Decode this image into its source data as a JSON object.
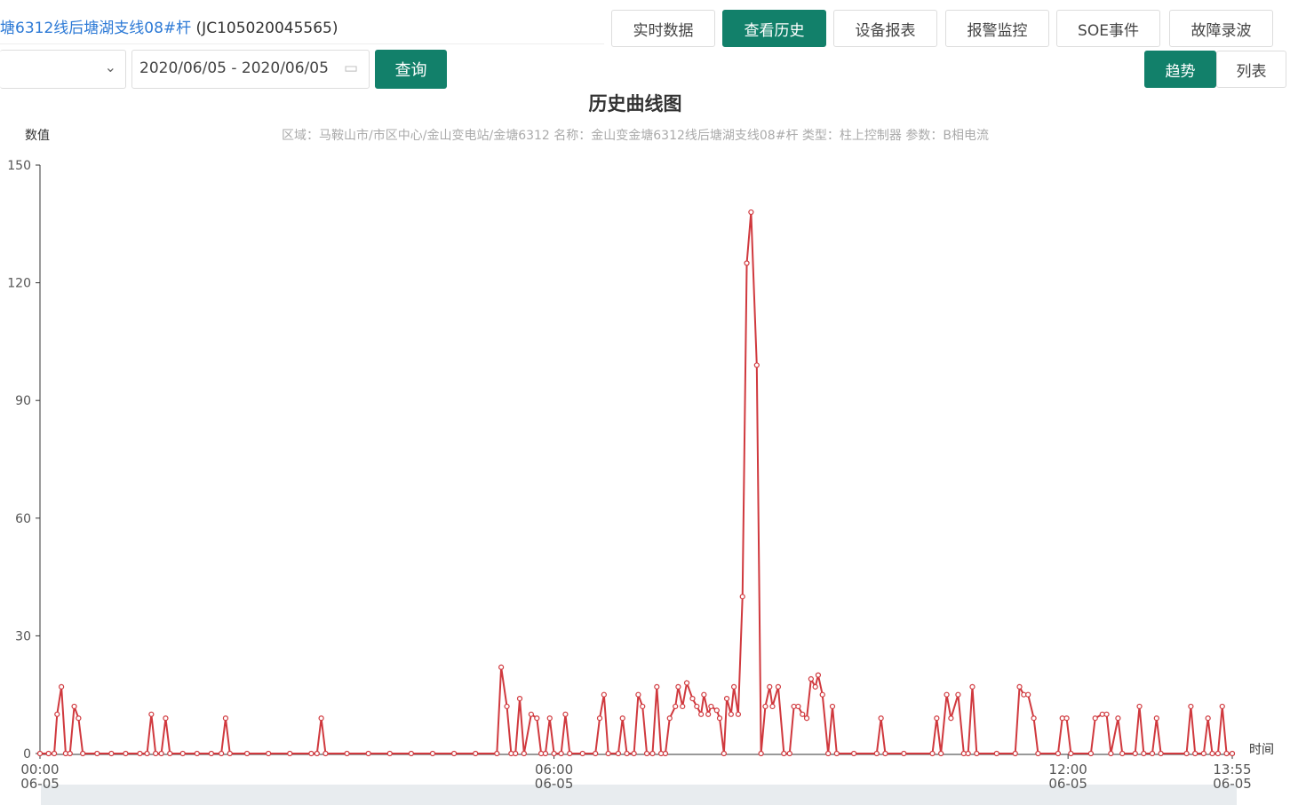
{
  "header": {
    "device": "塘6312线后塘湖支线08#杆",
    "code": "(JC105020045565)",
    "tabs": [
      "实时数据",
      "查看历史",
      "设备报表",
      "报警监控",
      "SOE事件",
      "故障录波"
    ],
    "date_range": "2020/06/05 - 2020/06/05",
    "query": "查询",
    "views": [
      "趋势",
      "列表"
    ]
  },
  "chart_data": {
    "type": "line",
    "title": "历史曲线图",
    "subtitle": "区域：马鞍山市/市区中心/金山变电站/金塘6312  名称：金山变金塘6312线后塘湖支线08#杆  类型：柱上控制器  参数：B相电流",
    "y_label": "数值",
    "x_label": "时间",
    "grid": false,
    "xlim": [
      0,
      835
    ],
    "xticks": [
      {
        "value": 0,
        "label": "00:00",
        "date": "06-05"
      },
      {
        "value": 360,
        "label": "06:00",
        "date": "06-05"
      },
      {
        "value": 720,
        "label": "12:00",
        "date": "06-05"
      },
      {
        "value": 835,
        "label": "13:55",
        "date": "06-05"
      }
    ],
    "ylim": [
      0,
      150
    ],
    "yticks": [
      0,
      30,
      60,
      90,
      120,
      150
    ],
    "x": [
      0,
      6,
      10,
      12,
      15,
      18,
      21,
      24,
      27,
      30,
      40,
      50,
      60,
      70,
      75,
      78,
      81,
      85,
      88,
      91,
      100,
      110,
      120,
      127,
      130,
      133,
      145,
      160,
      175,
      190,
      194,
      197,
      200,
      215,
      230,
      245,
      260,
      275,
      290,
      305,
      320,
      323,
      327,
      330,
      333,
      336,
      339,
      344,
      348,
      351,
      354,
      357,
      360,
      365,
      368,
      371,
      380,
      389,
      392,
      395,
      398,
      405,
      408,
      411,
      416,
      419,
      422,
      425,
      429,
      432,
      435,
      438,
      441,
      445,
      447,
      450,
      453,
      457,
      460,
      463,
      465,
      468,
      470,
      474,
      476,
      479,
      481,
      484,
      486,
      489,
      492,
      495,
      498,
      502,
      505,
      508,
      511,
      513,
      517,
      521,
      525,
      528,
      531,
      534,
      537,
      540,
      543,
      545,
      548,
      552,
      555,
      558,
      570,
      586,
      589,
      592,
      605,
      625,
      628,
      631,
      635,
      638,
      643,
      647,
      650,
      653,
      656,
      670,
      683,
      686,
      689,
      692,
      696,
      699,
      713,
      716,
      719,
      722,
      736,
      739,
      744,
      747,
      750,
      755,
      758,
      767,
      770,
      773,
      779,
      782,
      785,
      803,
      806,
      809,
      815,
      818,
      821,
      825,
      828,
      831,
      835
    ],
    "series": [
      {
        "name": "B相电流",
        "color": "#d0393e",
        "values": [
          0,
          0,
          0,
          10,
          17,
          0,
          0,
          12,
          9,
          0,
          0,
          0,
          0,
          0,
          0,
          10,
          0,
          0,
          9,
          0,
          0,
          0,
          0,
          0,
          9,
          0,
          0,
          0,
          0,
          0,
          0,
          9,
          0,
          0,
          0,
          0,
          0,
          0,
          0,
          0,
          0,
          22,
          12,
          0,
          0,
          14,
          0,
          10,
          9,
          0,
          0,
          9,
          0,
          0,
          10,
          0,
          0,
          0,
          9,
          15,
          0,
          0,
          9,
          0,
          0,
          15,
          12,
          0,
          0,
          17,
          0,
          0,
          9,
          12,
          17,
          12,
          18,
          14,
          12,
          10,
          15,
          10,
          12,
          11,
          9,
          0,
          14,
          10,
          17,
          10,
          40,
          125,
          138,
          99,
          0,
          12,
          17,
          12,
          17,
          0,
          0,
          12,
          12,
          10,
          9,
          19,
          17,
          20,
          15,
          0,
          12,
          0,
          0,
          0,
          9,
          0,
          0,
          0,
          9,
          0,
          15,
          9,
          15,
          0,
          0,
          17,
          0,
          0,
          0,
          17,
          15,
          15,
          9,
          0,
          0,
          9,
          9,
          0,
          0,
          9,
          10,
          10,
          0,
          9,
          0,
          0,
          12,
          0,
          0,
          9,
          0,
          0,
          12,
          0,
          0,
          9,
          0,
          0,
          12,
          0,
          0
        ]
      }
    ]
  }
}
